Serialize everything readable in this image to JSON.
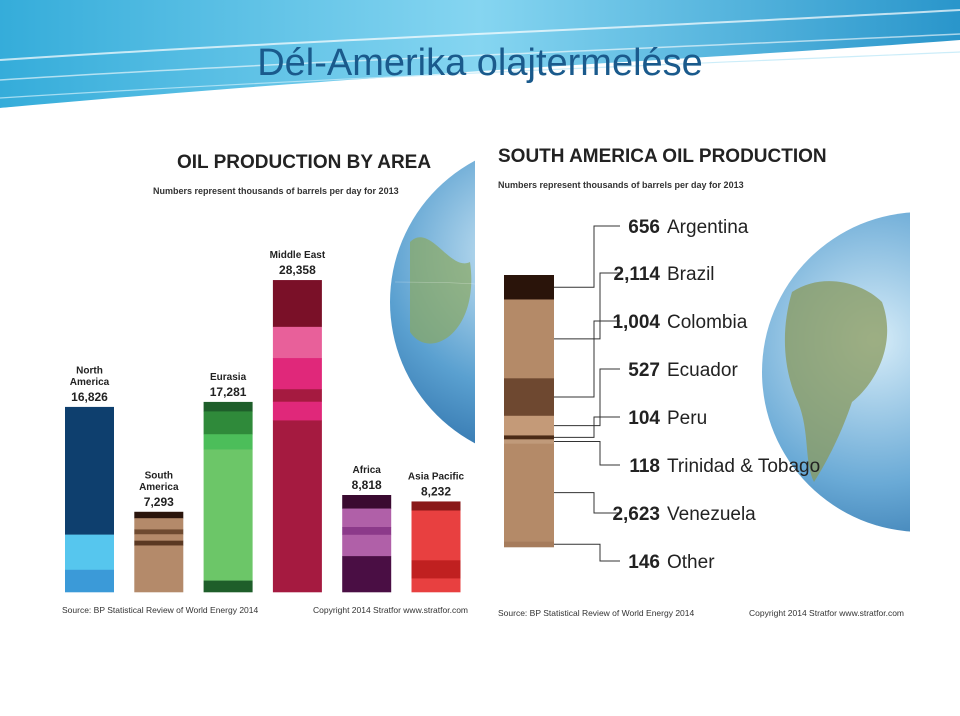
{
  "slide": {
    "title": "Dél-Amerika olajtermelése"
  },
  "chart_data": [
    {
      "type": "bar",
      "title": "OIL PRODUCTION BY AREA",
      "subtitle": "Numbers represent thousands of barrels per day for 2013",
      "categories": [
        "North America",
        "South America",
        "Eurasia",
        "Middle East",
        "Africa",
        "Asia Pacific"
      ],
      "category_lines": [
        [
          "North",
          "America"
        ],
        [
          "South",
          "America"
        ],
        [
          "Eurasia"
        ],
        [
          "Middle East"
        ],
        [
          "Africa"
        ],
        [
          "Asia Pacific"
        ]
      ],
      "values": [
        16826,
        7293,
        17281,
        28358,
        8818,
        8232
      ],
      "value_labels": [
        "16,826",
        "7,293",
        "17,281",
        "28,358",
        "8,818",
        "8,232"
      ],
      "ylim": [
        0,
        30000
      ],
      "grid": false,
      "legend": "none",
      "source": "Source: BP Statistical Review of World Energy 2014",
      "copyright": "Copyright 2014 Stratfor www.stratfor.com",
      "colors": {
        "North America": [
          "#0e3f6e",
          "#56c6ee",
          "#3b9ad8"
        ],
        "South America": [
          "#2a150c",
          "#b48a6a",
          "#6e4a30"
        ],
        "Eurasia": [
          "#1e5e2a",
          "#3faa4e",
          "#6cc668"
        ],
        "Middle East": [
          "#7a1028",
          "#e8609a",
          "#e0287a",
          "#a51a40"
        ],
        "Africa": [
          "#3a0a30",
          "#b060a8",
          "#8c3a8a",
          "#4a0e44"
        ],
        "Asia Pacific": [
          "#8a1818",
          "#e84040",
          "#c02020"
        ]
      }
    },
    {
      "type": "bar",
      "title": "SOUTH AMERICA OIL PRODUCTION",
      "subtitle": "Numbers represent thousands of barrels per day for 2013",
      "categories": [
        "Argentina",
        "Brazil",
        "Colombia",
        "Ecuador",
        "Peru",
        "Trinidad & Tobago",
        "Venezuela",
        "Other"
      ],
      "values": [
        656,
        2114,
        1004,
        527,
        104,
        118,
        2623,
        146
      ],
      "value_labels": [
        "656",
        "2,114",
        "1,004",
        "527",
        "104",
        "118",
        "2,623",
        "146"
      ],
      "stacked": true,
      "legend": "right",
      "source": "Source: BP Statistical Review of World Energy 2014",
      "copyright": "Copyright 2014 Stratfor www.stratfor.com",
      "colors": [
        "#2a140a",
        "#b48a68",
        "#6e4830",
        "#c49a78",
        "#4a2a16",
        "#c09a7a",
        "#b48a68",
        "#a67c5c"
      ]
    }
  ]
}
